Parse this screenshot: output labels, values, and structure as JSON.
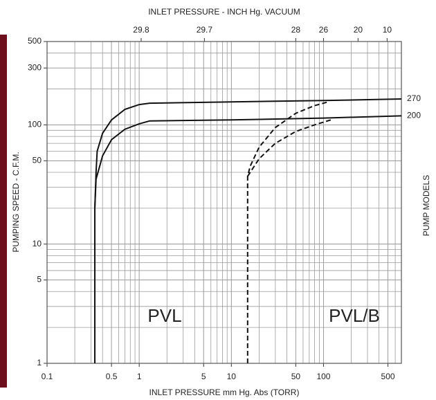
{
  "chart_data": {
    "type": "line",
    "x_label": "INLET PRESSURE mm Hg. Abs (TORR)",
    "x2_label": "INLET PRESSURE - INCH Hg. VACUUM",
    "y_label": "PUMPING SPEED - C.F.M.",
    "y2_label": "PUMP MODELS",
    "x_scale": "log",
    "y_scale": "log",
    "grid": true,
    "minor_grid": true,
    "xlim": [
      0.1,
      700
    ],
    "ylim": [
      1,
      500
    ],
    "xticks": [
      0.1,
      0.5,
      1,
      5,
      10,
      50,
      100,
      500
    ],
    "yticks": [
      1,
      5,
      10,
      50,
      100,
      300,
      500
    ],
    "x2ticks": [
      29.8,
      29.7,
      28,
      26,
      20,
      10
    ],
    "x2ticks_x": [
      1.05,
      5.1,
      50,
      100,
      237,
      490
    ],
    "series": [
      {
        "name": "270",
        "color": "#111111",
        "style": "solid",
        "x": [
          0.33,
          0.33,
          0.34,
          0.35,
          0.4,
          0.5,
          0.7,
          1,
          1.3,
          10,
          100,
          700
        ],
        "values": [
          1,
          20,
          40,
          60,
          85,
          110,
          135,
          148,
          152,
          156,
          160,
          165
        ]
      },
      {
        "name": "200",
        "color": "#111111",
        "style": "solid",
        "x": [
          0.33,
          0.33,
          0.34,
          0.4,
          0.5,
          0.7,
          1,
          1.3,
          10,
          100,
          700
        ],
        "values": [
          1,
          20,
          35,
          55,
          75,
          92,
          102,
          108,
          110,
          114,
          119
        ]
      },
      {
        "color": "#111111",
        "style": "dashed",
        "x": [
          15,
          15,
          16,
          20,
          30,
          50,
          80,
          110
        ],
        "values": [
          1,
          37,
          45,
          65,
          95,
          125,
          145,
          155
        ]
      },
      {
        "color": "#111111",
        "style": "dashed",
        "x": [
          15,
          20,
          30,
          50,
          80,
          120
        ],
        "values": [
          37,
          52,
          70,
          88,
          100,
          110
        ]
      }
    ],
    "annotations": [
      "PVL",
      "PVL/B"
    ]
  }
}
